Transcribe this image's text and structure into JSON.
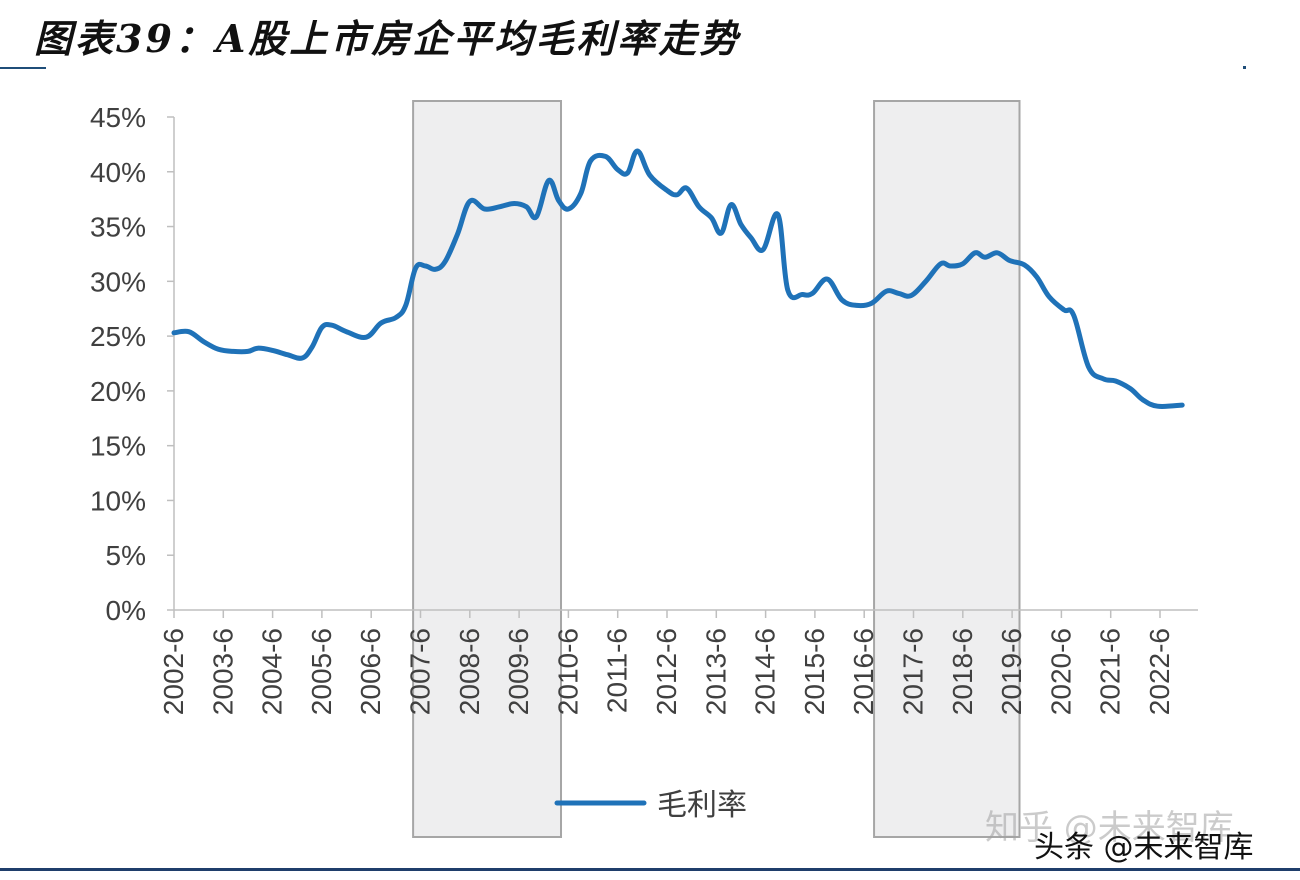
{
  "title": "图表39：A股上市房企平均毛利率走势",
  "watermarks": {
    "zhihu": "知乎 @未来智库",
    "toutiao": "头条 @未来智库"
  },
  "colors": {
    "line": "#1f72b8",
    "shade_fill": "#eeeeef",
    "shade_border": "#a6a6a6",
    "axis": "#bfbfbf",
    "text": "#404040"
  },
  "chart_data": {
    "type": "line",
    "title": "",
    "xlabel": "",
    "ylabel": "",
    "ylim": [
      0,
      45
    ],
    "y_ticks": [
      "0%",
      "5%",
      "10%",
      "15%",
      "20%",
      "25%",
      "30%",
      "35%",
      "40%",
      "45%"
    ],
    "x_ticks": [
      "2002-6",
      "2003-6",
      "2004-6",
      "2005-6",
      "2006-6",
      "2007-6",
      "2008-6",
      "2009-6",
      "2010-6",
      "2011-6",
      "2012-6",
      "2013-6",
      "2014-6",
      "2015-6",
      "2016-6",
      "2017-6",
      "2018-6",
      "2019-6",
      "2020-6",
      "2021-6",
      "2022-6"
    ],
    "x_unit": "years since 2002-6 (tick index)",
    "shaded_ranges": [
      [
        4.85,
        7.85
      ],
      [
        14.2,
        17.15
      ]
    ],
    "legend": {
      "position": "bottom-center",
      "entries": [
        "毛利率"
      ]
    },
    "grid": false,
    "series": [
      {
        "name": "毛利率",
        "points": [
          [
            0.0,
            25.3
          ],
          [
            0.3,
            25.4
          ],
          [
            0.6,
            24.5
          ],
          [
            0.9,
            23.8
          ],
          [
            1.2,
            23.6
          ],
          [
            1.5,
            23.6
          ],
          [
            1.7,
            23.9
          ],
          [
            2.0,
            23.7
          ],
          [
            2.3,
            23.3
          ],
          [
            2.6,
            23.0
          ],
          [
            2.8,
            24.0
          ],
          [
            3.0,
            25.8
          ],
          [
            3.2,
            26.0
          ],
          [
            3.5,
            25.4
          ],
          [
            3.9,
            24.9
          ],
          [
            4.2,
            26.2
          ],
          [
            4.5,
            26.7
          ],
          [
            4.7,
            27.8
          ],
          [
            4.9,
            31.2
          ],
          [
            5.1,
            31.4
          ],
          [
            5.3,
            31.1
          ],
          [
            5.5,
            31.8
          ],
          [
            5.75,
            34.3
          ],
          [
            6.0,
            37.3
          ],
          [
            6.3,
            36.6
          ],
          [
            6.6,
            36.8
          ],
          [
            6.9,
            37.1
          ],
          [
            7.15,
            36.8
          ],
          [
            7.35,
            35.9
          ],
          [
            7.6,
            39.2
          ],
          [
            7.8,
            37.4
          ],
          [
            8.0,
            36.6
          ],
          [
            8.25,
            38.0
          ],
          [
            8.45,
            41.0
          ],
          [
            8.75,
            41.4
          ],
          [
            9.0,
            40.2
          ],
          [
            9.2,
            39.9
          ],
          [
            9.4,
            41.9
          ],
          [
            9.65,
            39.7
          ],
          [
            10.0,
            38.3
          ],
          [
            10.2,
            37.9
          ],
          [
            10.4,
            38.5
          ],
          [
            10.65,
            36.8
          ],
          [
            10.9,
            35.8
          ],
          [
            11.1,
            34.4
          ],
          [
            11.3,
            37.0
          ],
          [
            11.5,
            35.2
          ],
          [
            11.7,
            34.0
          ],
          [
            11.95,
            32.9
          ],
          [
            12.25,
            36.1
          ],
          [
            12.45,
            29.2
          ],
          [
            12.75,
            28.8
          ],
          [
            12.95,
            28.9
          ],
          [
            13.25,
            30.2
          ],
          [
            13.55,
            28.3
          ],
          [
            13.85,
            27.8
          ],
          [
            14.15,
            28.0
          ],
          [
            14.45,
            29.1
          ],
          [
            14.7,
            28.9
          ],
          [
            14.95,
            28.7
          ],
          [
            15.25,
            30.0
          ],
          [
            15.55,
            31.6
          ],
          [
            15.75,
            31.4
          ],
          [
            16.0,
            31.6
          ],
          [
            16.25,
            32.6
          ],
          [
            16.45,
            32.2
          ],
          [
            16.7,
            32.6
          ],
          [
            16.95,
            31.9
          ],
          [
            17.25,
            31.5
          ],
          [
            17.5,
            30.4
          ],
          [
            17.75,
            28.6
          ],
          [
            18.05,
            27.4
          ],
          [
            18.25,
            26.9
          ],
          [
            18.55,
            22.2
          ],
          [
            18.85,
            21.1
          ],
          [
            19.1,
            20.9
          ],
          [
            19.4,
            20.2
          ],
          [
            19.65,
            19.2
          ],
          [
            19.95,
            18.6
          ],
          [
            20.45,
            18.7
          ]
        ]
      }
    ]
  }
}
